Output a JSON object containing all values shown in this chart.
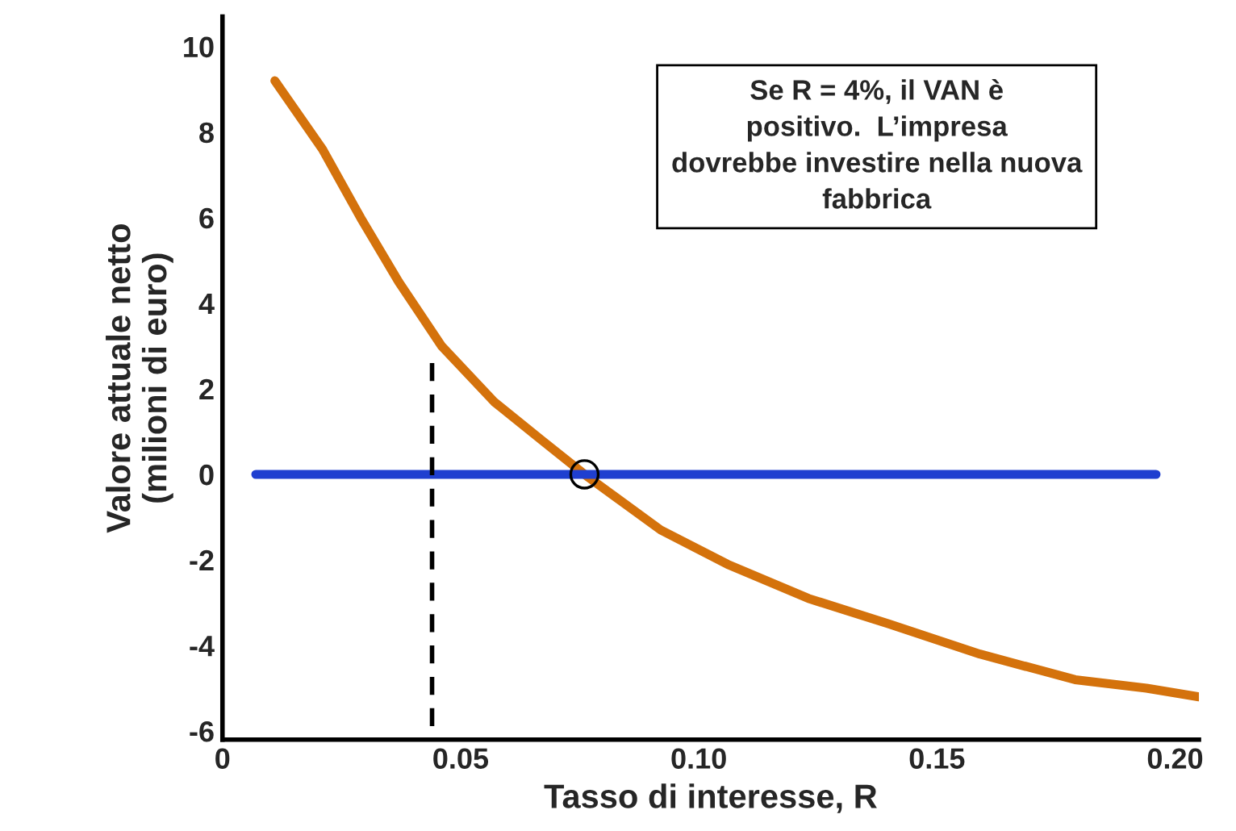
{
  "chart_data": {
    "type": "line",
    "xlabel": "Tasso di interesse, R",
    "ylabel": "Valore attuale netto\n(milioni di euro)",
    "xlim": [
      0,
      0.205
    ],
    "ylim": [
      -6.2,
      10.7
    ],
    "xticks": [
      0,
      {
        "value": 0.05,
        "label": "0.05"
      },
      {
        "value": 0.1,
        "label": "0.10"
      },
      {
        "value": 0.15,
        "label": "0.15"
      },
      {
        "value": 0.2,
        "label": "0.20"
      }
    ],
    "yticks": [
      -6,
      -4,
      -2,
      0,
      2,
      4,
      6,
      8,
      10
    ],
    "grid": false,
    "legend": false,
    "series": [
      {
        "color": "#d4720c",
        "line_style": "solid",
        "x": [
          0.011,
          0.021,
          0.029,
          0.037,
          0.046,
          0.057,
          0.067,
          0.076,
          0.092,
          0.106,
          0.123,
          0.14,
          0.159,
          0.179,
          0.194,
          0.205
        ],
        "values": [
          9.2,
          7.6,
          6.0,
          4.5,
          3.0,
          1.7,
          0.8,
          0,
          -1.3,
          -2.1,
          -2.9,
          -3.5,
          -4.2,
          -4.8,
          -5.0,
          -5.2
        ]
      },
      {
        "color": "#1f3fd0",
        "line_style": "solid",
        "x": [
          0.007,
          0.196
        ],
        "values": [
          0,
          0
        ]
      },
      {
        "color": "#000000",
        "line_style": "dashed",
        "x": [
          0.044,
          0.044
        ],
        "values": [
          2.6,
          -6.2
        ]
      },
      {
        "type": "scatter",
        "color": "#000000",
        "marker": "circle",
        "x": [
          0.076
        ],
        "values": [
          0
        ]
      }
    ],
    "annotations": [
      "Se R = 4%, il VAN è\npositivo.  L’impresa\ndovrebbe investire nella nuova\nfabbrica"
    ]
  }
}
